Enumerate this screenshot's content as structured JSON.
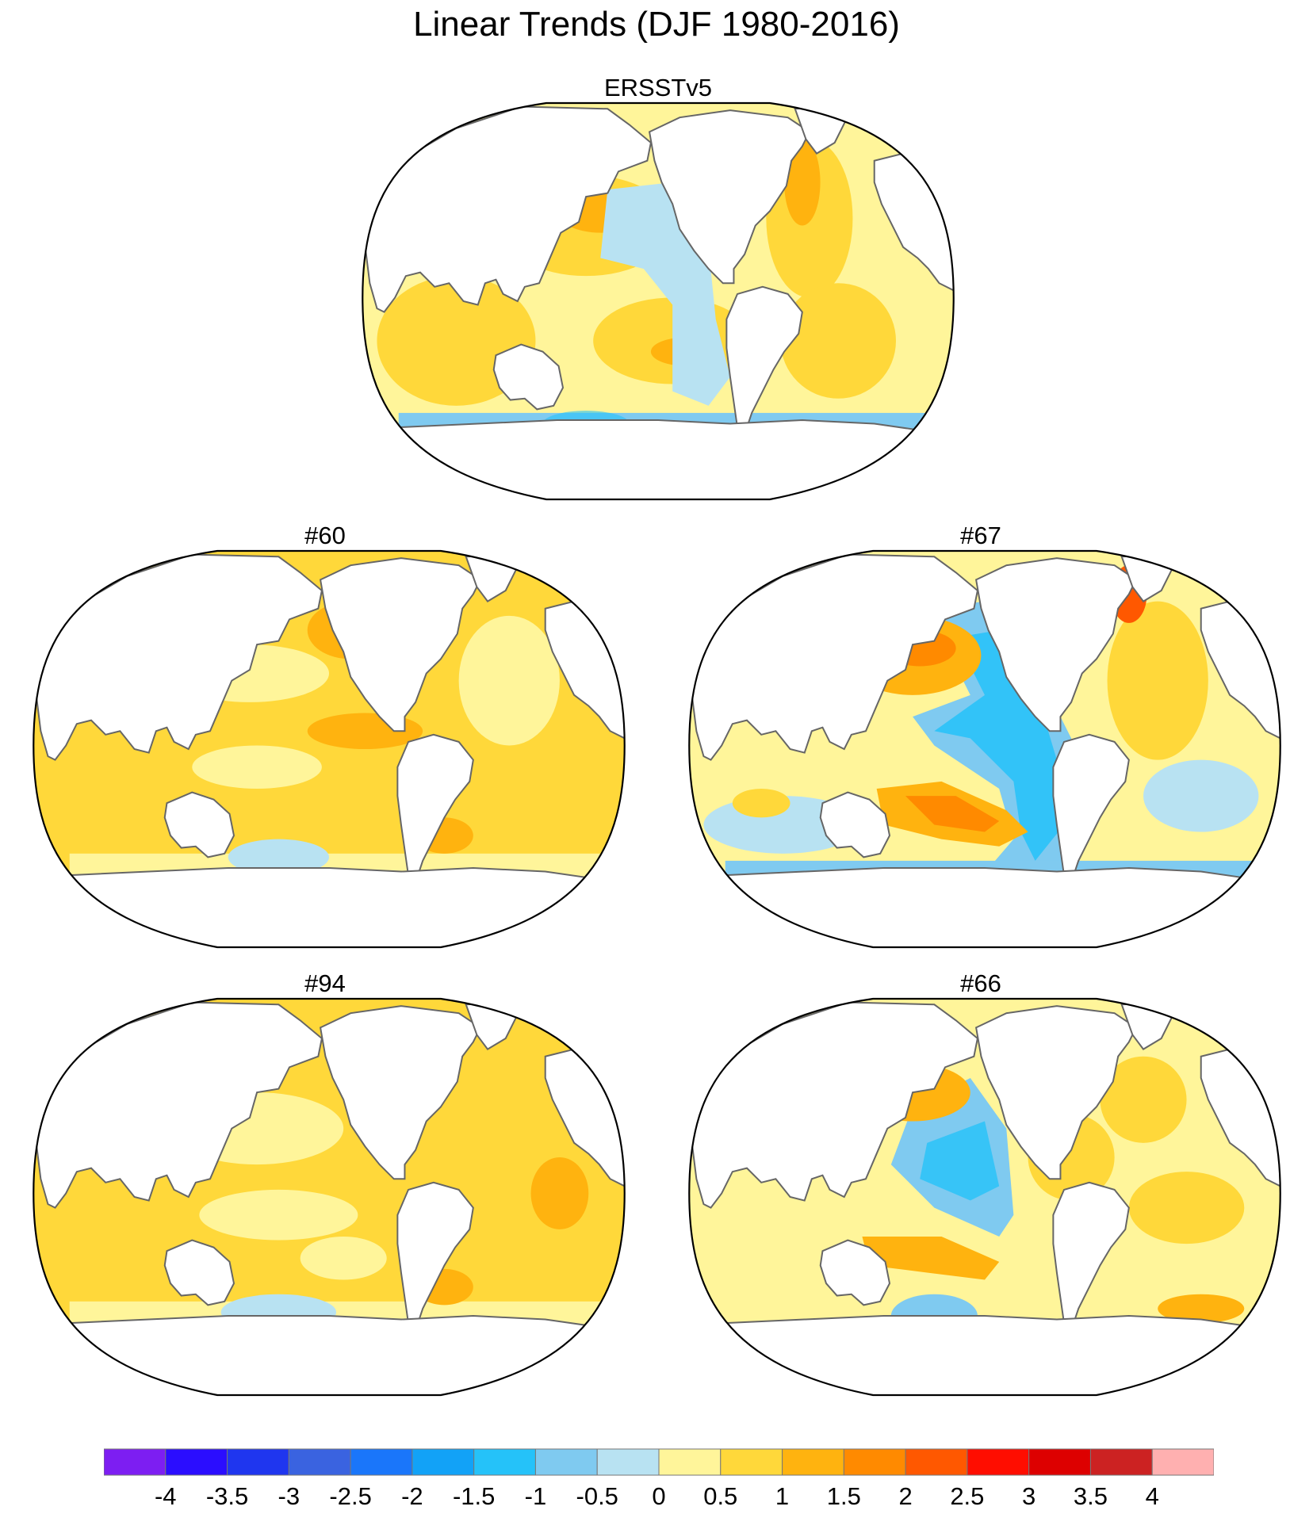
{
  "title": "Linear Trends (DJF 1980-2016)",
  "panels": [
    {
      "id": "ersstv5",
      "label": "ERSSTv5"
    },
    {
      "id": "m60",
      "label": "#60"
    },
    {
      "id": "m67",
      "label": "#67"
    },
    {
      "id": "m94",
      "label": "#94"
    },
    {
      "id": "m66",
      "label": "#66"
    }
  ],
  "colorbar": {
    "labels": [
      "-4",
      "-3.5",
      "-3",
      "-2.5",
      "-2",
      "-1.5",
      "-1",
      "-0.5",
      "0",
      "0.5",
      "1",
      "1.5",
      "2",
      "2.5",
      "3",
      "3.5",
      "4"
    ],
    "colors": [
      "#7d1ef2",
      "#2b0dff",
      "#1f36ef",
      "#3a63e0",
      "#1a76fa",
      "#12a2f7",
      "#25c2f9",
      "#7fcaf0",
      "#b8e2f2",
      "#fff59a",
      "#ffd83a",
      "#ffb30f",
      "#ff8a00",
      "#ff5800",
      "#ff0d00",
      "#dd0000",
      "#cc2222",
      "#ffb0b0"
    ]
  },
  "map_projection": "Robinson, centered on Pacific"
}
